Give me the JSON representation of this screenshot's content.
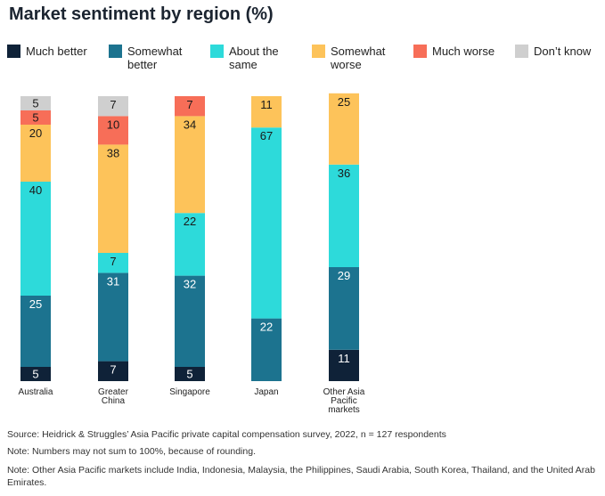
{
  "title": "Market sentiment by region (%)",
  "legend": [
    {
      "label": "Much better",
      "color": "#0f2238"
    },
    {
      "label": "Somewhat\nbetter",
      "color": "#1c738f"
    },
    {
      "label": "About the\nsame",
      "color": "#2ddada"
    },
    {
      "label": "Somewhat\nworse",
      "color": "#fdc35a"
    },
    {
      "label": "Much worse",
      "color": "#f76e58"
    },
    {
      "label": "Don’t know",
      "color": "#cfcfcf"
    }
  ],
  "chart_data": {
    "type": "bar",
    "stacked": true,
    "title": "Market sentiment by region (%)",
    "categories": [
      "Australia",
      "Greater\nChina",
      "Singapore",
      "Japan",
      "Other Asia\nPacific\nmarkets"
    ],
    "series": [
      {
        "name": "Much better",
        "color": "#0f2238",
        "label_color": "#ffffff",
        "values": [
          5,
          7,
          5,
          0,
          11
        ]
      },
      {
        "name": "Somewhat better",
        "color": "#1c738f",
        "label_color": "#ffffff",
        "values": [
          25,
          31,
          32,
          22,
          29
        ]
      },
      {
        "name": "About the same",
        "color": "#2ddada",
        "label_color": "#1a1a1a",
        "values": [
          40,
          7,
          22,
          67,
          36
        ]
      },
      {
        "name": "Somewhat worse",
        "color": "#fdc35a",
        "label_color": "#1a1a1a",
        "values": [
          20,
          38,
          34,
          11,
          25
        ]
      },
      {
        "name": "Much worse",
        "color": "#f76e58",
        "label_color": "#1a1a1a",
        "values": [
          5,
          10,
          7,
          0,
          0
        ]
      },
      {
        "name": "Don’t know",
        "color": "#cfcfcf",
        "label_color": "#1a1a1a",
        "values": [
          5,
          7,
          0,
          0,
          0
        ]
      }
    ],
    "totals": [
      100,
      100,
      100,
      100,
      101
    ],
    "xlabel": "",
    "ylabel": "",
    "ylim": [
      0,
      100
    ]
  },
  "notes": {
    "source": "Source: Heidrick & Struggles’ Asia Pacific private capital compensation survey, 2022, n = 127 respondents",
    "rounding": "Note: Numbers may not sum to 100%, because of rounding.",
    "markets": "Note: Other Asia Pacific markets include India, Indonesia, Malaysia, the Philippines, Saudi Arabia, South Korea, Thailand, and the United Arab Emirates."
  }
}
